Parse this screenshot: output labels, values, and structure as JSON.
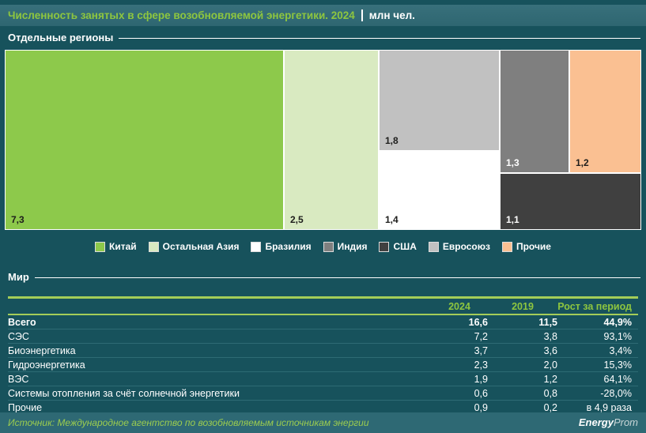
{
  "header": {
    "title": "Численность занятых в сфере возобновляемой энергетики. 2024",
    "unit": "млн чел."
  },
  "colors": {
    "background": "#17525c",
    "titlebar": "#336b76",
    "accent_green": "#8ec63f",
    "table_line_green": "#a4cd58",
    "footer_bar": "#2e6974"
  },
  "chart_data": [
    {
      "type": "treemap",
      "title": "Отдельные регионы",
      "unit": "млн чел.",
      "items": [
        {
          "label": "Китай",
          "value": 7.3,
          "display": "7,3",
          "color": "#8dc94b",
          "label_color": "#1d1d1b"
        },
        {
          "label": "Остальная Азия",
          "value": 2.5,
          "display": "2,5",
          "color": "#d9eac1",
          "label_color": "#1d1d1b"
        },
        {
          "label": "Евросоюз",
          "value": 1.8,
          "display": "1,8",
          "color": "#c1c1c1",
          "label_color": "#1d1d1b"
        },
        {
          "label": "Бразилия",
          "value": 1.4,
          "display": "1,4",
          "color": "#ffffff",
          "label_color": "#1d1d1b"
        },
        {
          "label": "Индия",
          "value": 1.3,
          "display": "1,3",
          "color": "#7f7f7f",
          "label_color": "#ffffff"
        },
        {
          "label": "Прочие",
          "value": 1.2,
          "display": "1,2",
          "color": "#fac092",
          "label_color": "#1d1d1b"
        },
        {
          "label": "США",
          "value": 1.1,
          "display": "1,1",
          "color": "#404040",
          "label_color": "#ffffff"
        }
      ],
      "legend": [
        {
          "label": "Китай",
          "color": "#8dc94b"
        },
        {
          "label": "Остальная Азия",
          "color": "#d9eac1"
        },
        {
          "label": "Бразилия",
          "color": "#ffffff"
        },
        {
          "label": "Индия",
          "color": "#7f7f7f"
        },
        {
          "label": "США",
          "color": "#404040"
        },
        {
          "label": "Евросоюз",
          "color": "#c1c1c1"
        },
        {
          "label": "Прочие",
          "color": "#fac092"
        }
      ]
    },
    {
      "type": "table",
      "title": "Мир",
      "columns": [
        "",
        "2024",
        "2019",
        "Рост за период"
      ],
      "rows": [
        [
          "Всего",
          "16,6",
          "11,5",
          "44,9%"
        ],
        [
          "СЭС",
          "7,2",
          "3,8",
          "93,1%"
        ],
        [
          "Биоэнергетика",
          "3,7",
          "3,6",
          "3,4%"
        ],
        [
          "Гидроэнергетика",
          "2,3",
          "2,0",
          "15,3%"
        ],
        [
          "ВЭС",
          "1,9",
          "1,2",
          "64,1%"
        ],
        [
          "Системы отопления за счёт солнечной энергетики",
          "0,6",
          "0,8",
          "-28,0%"
        ],
        [
          "Прочие",
          "0,9",
          "0,2",
          "в 4,9 раза"
        ]
      ]
    }
  ],
  "footer": {
    "source": "Источник: Международное агентство по возобновляемым источникам энергии",
    "brand_bold": "Energy",
    "brand_light": "Prom"
  }
}
